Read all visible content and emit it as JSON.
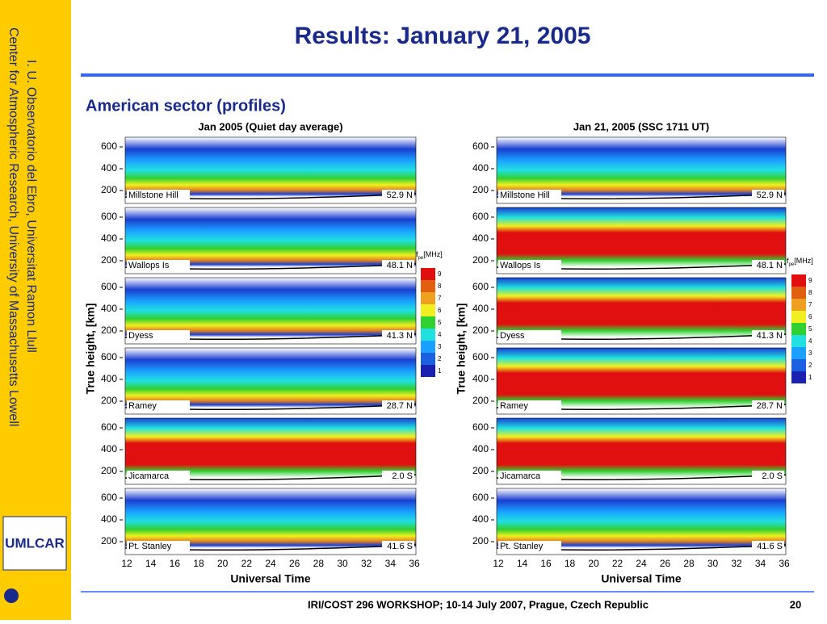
{
  "title": "Results: January 21, 2005",
  "subtitle": "American sector (profiles)",
  "sidebar": {
    "line1": "I. U. Observatorio del Ebro, Universitat Ramon Llull",
    "line2": "Center for Atmospheric Research, University of Massachusetts Lowell"
  },
  "logo": "UMLCAR",
  "panels": [
    {
      "title": "Jan 2005 (Quiet day average)"
    },
    {
      "title": "Jan 21, 2005 (SSC 1711 UT)"
    }
  ],
  "y_axis_label": "True height, [km]",
  "x_axis_label": "Universal Time",
  "y_ticks": [
    "600",
    "400",
    "200"
  ],
  "x_ticks": [
    "12",
    "14",
    "16",
    "18",
    "20",
    "22",
    "24",
    "26",
    "28",
    "30",
    "32",
    "34",
    "36"
  ],
  "stations": [
    {
      "name": "Millstone Hill",
      "lat": "52.9 N"
    },
    {
      "name": "Wallops Is",
      "lat": "48.1 N"
    },
    {
      "name": "Dyess",
      "lat": "41.3 N"
    },
    {
      "name": "Ramey",
      "lat": "28.7 N"
    },
    {
      "name": "Jicamarca",
      "lat": "2.0 S"
    },
    {
      "name": "Pt. Stanley",
      "lat": "41.6 S"
    }
  ],
  "colorbar": {
    "symbol": "f",
    "sub": "pe",
    "unit": "[MHz]",
    "levels": [
      "9",
      "8",
      "7",
      "6",
      "5",
      "4",
      "3",
      "2",
      "1"
    ]
  },
  "footer": {
    "text": "IRI/COST 296 WORKSHOP; 10-14 July 2007, Prague, Czech Republic",
    "page": "20"
  }
}
